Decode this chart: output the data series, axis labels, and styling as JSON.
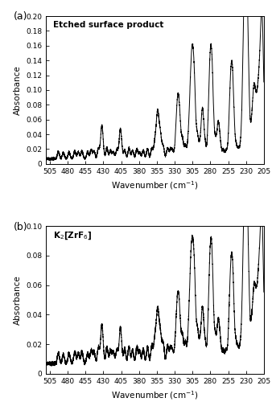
{
  "title_a": "Etched surface product",
  "xlabel": "Wavenumber (cm$^{-1}$)",
  "ylabel": "Absorbance",
  "xmin": 205,
  "xmax": 510,
  "xticks": [
    505,
    480,
    455,
    430,
    405,
    380,
    355,
    330,
    305,
    280,
    255,
    230,
    205
  ],
  "ylim_a": [
    0,
    0.2
  ],
  "yticks_a": [
    0,
    0.02,
    0.04,
    0.06,
    0.08,
    0.1,
    0.12,
    0.14,
    0.16,
    0.18,
    0.2
  ],
  "ylim_b": [
    0,
    0.1
  ],
  "yticks_b": [
    0,
    0.02,
    0.04,
    0.06,
    0.08,
    0.1
  ],
  "label_a": "(a)",
  "label_b": "(b)",
  "line_color": "#000000",
  "line_width": 0.7,
  "background": "#ffffff",
  "baseline": 0.007,
  "noise_a": 0.0008,
  "noise_b": 0.0006,
  "peaks_a": {
    "positions": [
      493,
      486,
      478,
      470,
      465,
      460,
      452,
      447,
      443,
      437,
      432,
      425,
      420,
      416,
      411,
      406,
      400,
      394,
      389,
      383,
      379,
      374,
      368,
      362,
      358,
      354,
      350,
      346,
      340,
      336,
      333,
      329,
      326,
      323,
      319,
      315,
      311,
      308,
      305,
      302,
      298,
      295,
      291,
      287,
      283,
      280,
      277,
      273,
      269,
      266,
      262,
      258,
      254,
      251,
      248,
      244,
      241,
      238,
      235,
      232,
      230,
      228,
      226,
      223,
      220,
      218,
      215,
      212,
      209,
      207
    ],
    "heights": [
      0.009,
      0.008,
      0.009,
      0.01,
      0.009,
      0.01,
      0.009,
      0.012,
      0.01,
      0.013,
      0.045,
      0.015,
      0.011,
      0.009,
      0.012,
      0.04,
      0.012,
      0.014,
      0.011,
      0.013,
      0.008,
      0.011,
      0.013,
      0.014,
      0.018,
      0.063,
      0.03,
      0.016,
      0.014,
      0.012,
      0.01,
      0.008,
      0.072,
      0.045,
      0.025,
      0.018,
      0.014,
      0.06,
      0.12,
      0.06,
      0.028,
      0.012,
      0.068,
      0.014,
      0.01,
      0.13,
      0.068,
      0.022,
      0.048,
      0.016,
      0.012,
      0.011,
      0.009,
      0.11,
      0.06,
      0.015,
      0.012,
      0.01,
      0.008,
      0.188,
      0.12,
      0.075,
      0.045,
      0.022,
      0.06,
      0.045,
      0.06,
      0.065,
      0.08,
      0.14
    ],
    "widths": [
      1.5,
      1.5,
      1.5,
      1.5,
      1.5,
      1.5,
      1.5,
      1.5,
      1.5,
      1.5,
      1.8,
      1.5,
      1.5,
      1.5,
      1.5,
      1.8,
      1.5,
      1.5,
      1.5,
      1.5,
      1.5,
      1.5,
      1.5,
      1.5,
      1.5,
      2.0,
      1.8,
      1.5,
      1.5,
      1.5,
      1.5,
      1.5,
      2.0,
      1.8,
      1.5,
      1.5,
      1.5,
      2.0,
      2.2,
      1.8,
      1.5,
      1.5,
      2.0,
      1.5,
      1.5,
      2.2,
      1.8,
      1.5,
      1.8,
      1.5,
      1.5,
      1.5,
      1.5,
      2.2,
      1.8,
      1.5,
      1.5,
      1.5,
      1.5,
      2.5,
      2.0,
      1.8,
      1.5,
      1.5,
      2.0,
      1.8,
      2.0,
      1.8,
      2.0,
      2.2
    ]
  },
  "peaks_b": {
    "positions": [
      493,
      486,
      478,
      470,
      465,
      460,
      452,
      447,
      443,
      437,
      432,
      425,
      420,
      416,
      411,
      406,
      400,
      394,
      389,
      383,
      379,
      374,
      368,
      362,
      358,
      354,
      350,
      346,
      340,
      336,
      333,
      329,
      326,
      323,
      319,
      315,
      311,
      308,
      305,
      302,
      298,
      295,
      291,
      287,
      283,
      280,
      277,
      273,
      269,
      266,
      262,
      258,
      254,
      251,
      248,
      244,
      241,
      238,
      235,
      232,
      230,
      228,
      226,
      223,
      220,
      218,
      215,
      212,
      209,
      207
    ],
    "heights": [
      0.007,
      0.006,
      0.007,
      0.008,
      0.007,
      0.008,
      0.007,
      0.009,
      0.008,
      0.01,
      0.026,
      0.011,
      0.009,
      0.008,
      0.009,
      0.024,
      0.01,
      0.011,
      0.009,
      0.011,
      0.008,
      0.01,
      0.011,
      0.012,
      0.014,
      0.036,
      0.018,
      0.013,
      0.012,
      0.01,
      0.008,
      0.007,
      0.04,
      0.025,
      0.018,
      0.014,
      0.011,
      0.04,
      0.063,
      0.038,
      0.02,
      0.01,
      0.038,
      0.01,
      0.008,
      0.07,
      0.04,
      0.015,
      0.028,
      0.012,
      0.009,
      0.009,
      0.008,
      0.062,
      0.035,
      0.012,
      0.009,
      0.008,
      0.007,
      0.092,
      0.06,
      0.04,
      0.025,
      0.015,
      0.03,
      0.025,
      0.035,
      0.038,
      0.05,
      0.063
    ],
    "widths": [
      1.5,
      1.5,
      1.5,
      1.5,
      1.5,
      1.5,
      1.5,
      1.5,
      1.5,
      1.5,
      1.8,
      1.5,
      1.5,
      1.5,
      1.5,
      1.8,
      1.5,
      1.5,
      1.5,
      1.5,
      1.5,
      1.5,
      1.5,
      1.5,
      1.5,
      2.0,
      1.8,
      1.5,
      1.5,
      1.5,
      1.5,
      1.5,
      2.0,
      1.8,
      1.5,
      1.5,
      1.5,
      2.0,
      2.2,
      1.8,
      1.5,
      1.5,
      2.0,
      1.5,
      1.5,
      2.2,
      1.8,
      1.5,
      1.8,
      1.5,
      1.5,
      1.5,
      1.5,
      2.2,
      1.8,
      1.5,
      1.5,
      1.5,
      1.5,
      2.5,
      2.0,
      1.8,
      1.5,
      1.5,
      2.0,
      1.8,
      2.0,
      1.8,
      2.0,
      2.2
    ]
  }
}
